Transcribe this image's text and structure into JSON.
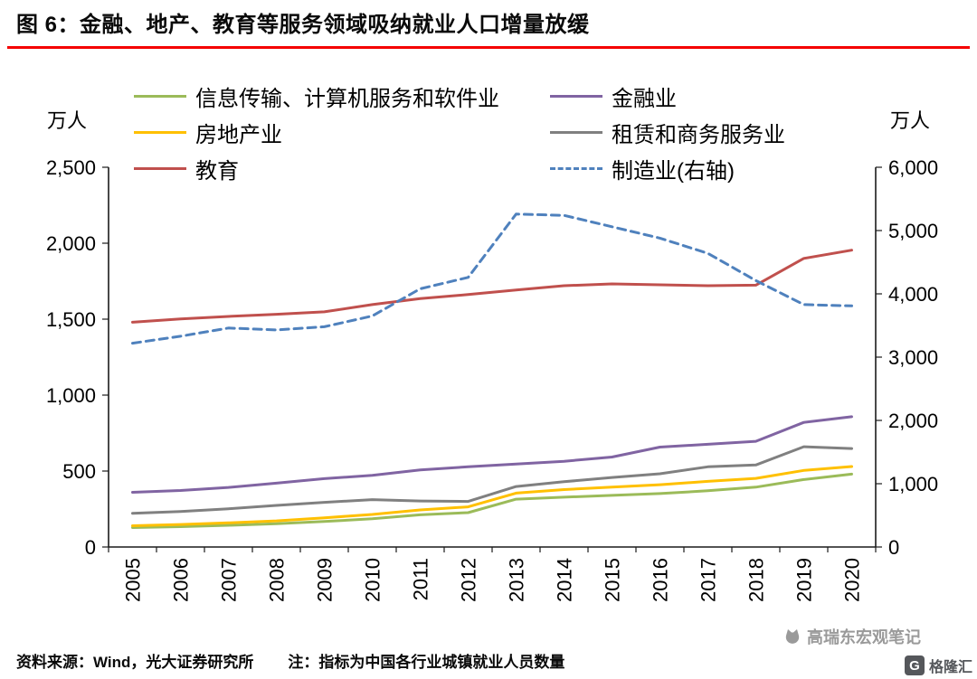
{
  "page": {
    "title": "图 6：金融、地产、教育等服务领域吸纳就业人口增量放缓",
    "footer": {
      "source": "资料来源：Wind，光大证券研究所",
      "note": "注：指标为中国各行业城镇就业人员数量"
    },
    "watermark": "高瑞东宏观笔记",
    "logo_g": "G",
    "logo_text": "格隆汇"
  },
  "chart_data": {
    "type": "line",
    "x": [
      "2005",
      "2006",
      "2007",
      "2008",
      "2009",
      "2010",
      "2011",
      "2012",
      "2013",
      "2014",
      "2015",
      "2016",
      "2017",
      "2018",
      "2019",
      "2020"
    ],
    "left_axis": {
      "label": "万人",
      "min": 0,
      "max": 2500,
      "tick_values": [
        0,
        500,
        1000,
        1500,
        2000,
        2500
      ],
      "tick_labels": [
        "0",
        "500",
        "1,000",
        "1,500",
        "2,000",
        "2,500"
      ]
    },
    "right_axis": {
      "label": "万人",
      "min": 0,
      "max": 6000,
      "tick_values": [
        0,
        1000,
        2000,
        3000,
        4000,
        5000,
        6000
      ],
      "tick_labels": [
        "0",
        "1,000",
        "2,000",
        "3,000",
        "4,000",
        "5,000",
        "6,000"
      ]
    },
    "legend_position": "top",
    "grid": false,
    "series": [
      {
        "name": "信息传输、计算机服务和软件业",
        "color": "#9BBB59",
        "axis": "left",
        "dashed": false,
        "values": [
          128,
          134,
          143,
          153,
          168,
          186,
          212,
          226,
          315,
          328,
          340,
          352,
          370,
          394,
          444,
          480
        ]
      },
      {
        "name": "金融业",
        "color": "#8064A2",
        "axis": "left",
        "dashed": false,
        "values": [
          360,
          372,
          392,
          420,
          450,
          472,
          508,
          528,
          546,
          564,
          592,
          658,
          676,
          696,
          820,
          858
        ]
      },
      {
        "name": "房地产业",
        "color": "#FFC000",
        "axis": "left",
        "dashed": false,
        "values": [
          140,
          148,
          159,
          172,
          192,
          214,
          244,
          264,
          355,
          378,
          394,
          410,
          432,
          452,
          504,
          530
        ]
      },
      {
        "name": "租赁和商务服务业",
        "color": "#808080",
        "axis": "left",
        "dashed": false,
        "values": [
          222,
          234,
          252,
          274,
          294,
          312,
          303,
          300,
          398,
          430,
          458,
          482,
          528,
          540,
          660,
          648
        ]
      },
      {
        "name": "教育",
        "color": "#C0504D",
        "axis": "left",
        "dashed": false,
        "values": [
          1480,
          1502,
          1518,
          1532,
          1548,
          1596,
          1636,
          1662,
          1692,
          1720,
          1732,
          1726,
          1720,
          1724,
          1900,
          1954
        ]
      },
      {
        "name": "制造业(右轴)",
        "color": "#4F81BD",
        "axis": "right",
        "dashed": true,
        "values": [
          3220,
          3330,
          3460,
          3430,
          3480,
          3650,
          4080,
          4260,
          5260,
          5240,
          5060,
          4880,
          4640,
          4210,
          3830,
          3810
        ]
      }
    ]
  }
}
